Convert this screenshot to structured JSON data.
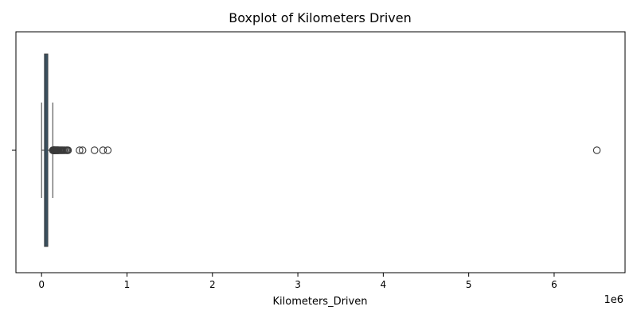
{
  "chart_data": {
    "type": "boxplot",
    "title": "Boxplot of Kilometers Driven",
    "xlabel": "Kilometers_Driven",
    "ylabel": "",
    "offset_text": "1e6",
    "orientation": "horizontal",
    "xlim": [
      -300000,
      6830000
    ],
    "xticks": [
      0,
      1000000,
      2000000,
      3000000,
      4000000,
      5000000,
      6000000
    ],
    "xtick_labels": [
      "0",
      "1",
      "2",
      "3",
      "4",
      "5",
      "6"
    ],
    "grid": false,
    "colors": {
      "box_fill": "#3b5f78",
      "line": "#3a3a3a"
    },
    "box": {
      "whisker_low": 171,
      "q1": 34000,
      "median": 53000,
      "q3": 73000,
      "whisker_high": 131000
    },
    "outliers": [
      132000,
      134000,
      136000,
      138000,
      140000,
      142000,
      145000,
      148000,
      150000,
      153000,
      156000,
      160000,
      165000,
      170000,
      175000,
      180000,
      185000,
      190000,
      195000,
      200000,
      210000,
      220000,
      230000,
      240000,
      250000,
      262000,
      275000,
      290000,
      300000,
      310000,
      445000,
      480000,
      620000,
      720000,
      775000,
      6500000
    ]
  }
}
